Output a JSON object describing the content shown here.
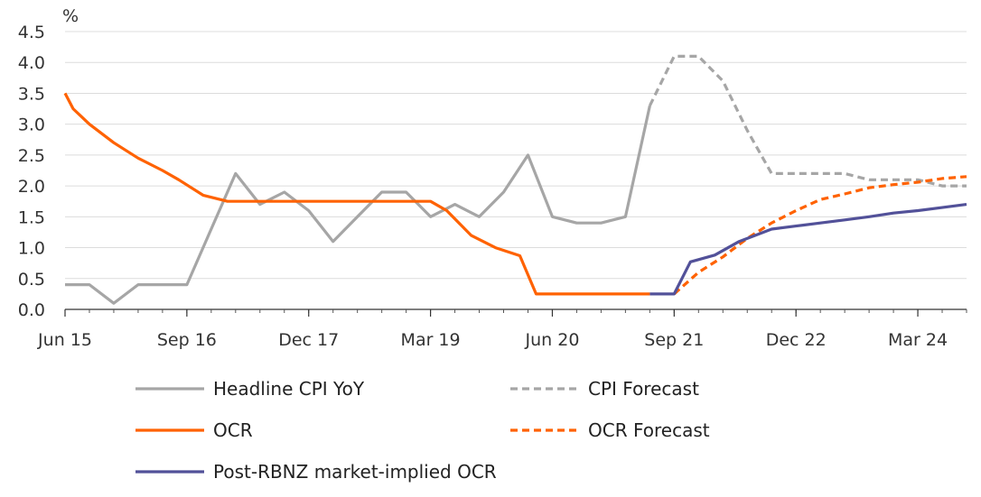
{
  "chart_data": {
    "type": "line",
    "ylabel": "%",
    "ylim": [
      0,
      4.5
    ],
    "yticks": [
      "0.0",
      "0.5",
      "1.0",
      "1.5",
      "2.0",
      "2.5",
      "3.0",
      "3.5",
      "4.0",
      "4.5"
    ],
    "xlim": [
      "Jun 15",
      "Sep 24"
    ],
    "xticks": [
      "Jun 15",
      "Sep 16",
      "Dec 17",
      "Mar 19",
      "Jun 20",
      "Sep 21",
      "Dec 22",
      "Mar 24"
    ],
    "grid": "horizontal",
    "legend_position": "bottom",
    "series": [
      {
        "name": "Headline CPI YoY",
        "color": "#a6a6a6",
        "dash": "solid",
        "points": [
          [
            "Jun 15",
            0.4
          ],
          [
            "Sep 15",
            0.4
          ],
          [
            "Dec 15",
            0.1
          ],
          [
            "Mar 16",
            0.4
          ],
          [
            "Jun 16",
            0.4
          ],
          [
            "Sep 16",
            0.4
          ],
          [
            "Dec 16",
            1.3
          ],
          [
            "Mar 17",
            2.2
          ],
          [
            "Jun 17",
            1.7
          ],
          [
            "Sep 17",
            1.9
          ],
          [
            "Dec 17",
            1.6
          ],
          [
            "Mar 18",
            1.1
          ],
          [
            "Jun 18",
            1.5
          ],
          [
            "Sep 18",
            1.9
          ],
          [
            "Dec 18",
            1.9
          ],
          [
            "Mar 19",
            1.5
          ],
          [
            "Jun 19",
            1.7
          ],
          [
            "Sep 19",
            1.5
          ],
          [
            "Dec 19",
            1.9
          ],
          [
            "Mar 20",
            2.5
          ],
          [
            "Jun 20",
            1.5
          ],
          [
            "Sep 20",
            1.4
          ],
          [
            "Dec 20",
            1.4
          ],
          [
            "Mar 21",
            1.5
          ],
          [
            "Jun 21",
            3.3
          ]
        ]
      },
      {
        "name": "CPI Forecast",
        "color": "#a6a6a6",
        "dash": "dashed",
        "points": [
          [
            "Jun 21",
            3.3
          ],
          [
            "Sep 21",
            4.1
          ],
          [
            "Dec 21",
            4.1
          ],
          [
            "Mar 22",
            3.7
          ],
          [
            "Jun 22",
            2.9
          ],
          [
            "Sep 22",
            2.2
          ],
          [
            "Dec 22",
            2.2
          ],
          [
            "Mar 23",
            2.2
          ],
          [
            "Jun 23",
            2.2
          ],
          [
            "Sep 23",
            2.1
          ],
          [
            "Dec 23",
            2.1
          ],
          [
            "Mar 24",
            2.1
          ],
          [
            "Jun 24",
            2.0
          ],
          [
            "Sep 24",
            2.0
          ]
        ]
      },
      {
        "name": "OCR",
        "color": "#ff6200",
        "dash": "solid",
        "points": [
          [
            "Jun 15",
            3.5
          ],
          [
            "Jul 15",
            3.25
          ],
          [
            "Sep 15",
            3.0
          ],
          [
            "Dec 15",
            2.7
          ],
          [
            "Mar 16",
            2.45
          ],
          [
            "Jun 16",
            2.25
          ],
          [
            "Aug 16",
            2.1
          ],
          [
            "Nov 16",
            1.85
          ],
          [
            "Feb 17",
            1.75
          ],
          [
            "Mar 17",
            1.75
          ],
          [
            "Jun 17",
            1.75
          ],
          [
            "Sep 17",
            1.75
          ],
          [
            "Dec 17",
            1.75
          ],
          [
            "Mar 18",
            1.75
          ],
          [
            "Jun 18",
            1.75
          ],
          [
            "Sep 18",
            1.75
          ],
          [
            "Dec 18",
            1.75
          ],
          [
            "Mar 19",
            1.75
          ],
          [
            "May 19",
            1.6
          ],
          [
            "Aug 19",
            1.2
          ],
          [
            "Nov 19",
            1.0
          ],
          [
            "Feb 20",
            0.87
          ],
          [
            "Apr 20",
            0.25
          ],
          [
            "Jun 20",
            0.25
          ],
          [
            "Sep 20",
            0.25
          ],
          [
            "Dec 20",
            0.25
          ],
          [
            "Mar 21",
            0.25
          ],
          [
            "Jun 21",
            0.25
          ]
        ]
      },
      {
        "name": "OCR Forecast",
        "color": "#ff6200",
        "dash": "dashed",
        "points": [
          [
            "Sep 21",
            0.25
          ],
          [
            "Dec 21",
            0.6
          ],
          [
            "Mar 22",
            0.85
          ],
          [
            "Jun 22",
            1.15
          ],
          [
            "Sep 22",
            1.4
          ],
          [
            "Dec 22",
            1.6
          ],
          [
            "Mar 23",
            1.78
          ],
          [
            "Jun 23",
            1.87
          ],
          [
            "Sep 23",
            1.97
          ],
          [
            "Dec 23",
            2.02
          ],
          [
            "Mar 24",
            2.06
          ],
          [
            "Jun 24",
            2.12
          ],
          [
            "Sep 24",
            2.15
          ]
        ]
      },
      {
        "name": "Post-RBNZ market-implied OCR",
        "color": "#525199",
        "dash": "solid",
        "points": [
          [
            "Jun 21",
            0.25
          ],
          [
            "Sep 21",
            0.25
          ],
          [
            "Nov 21",
            0.77
          ],
          [
            "Feb 22",
            0.88
          ],
          [
            "May 22",
            1.1
          ],
          [
            "Sep 22",
            1.3
          ],
          [
            "Dec 22",
            1.35
          ],
          [
            "Mar 23",
            1.4
          ],
          [
            "Jun 23",
            1.45
          ],
          [
            "Sep 23",
            1.5
          ],
          [
            "Dec 23",
            1.56
          ],
          [
            "Mar 24",
            1.6
          ],
          [
            "Jun 24",
            1.65
          ],
          [
            "Sep 24",
            1.7
          ]
        ]
      }
    ]
  }
}
